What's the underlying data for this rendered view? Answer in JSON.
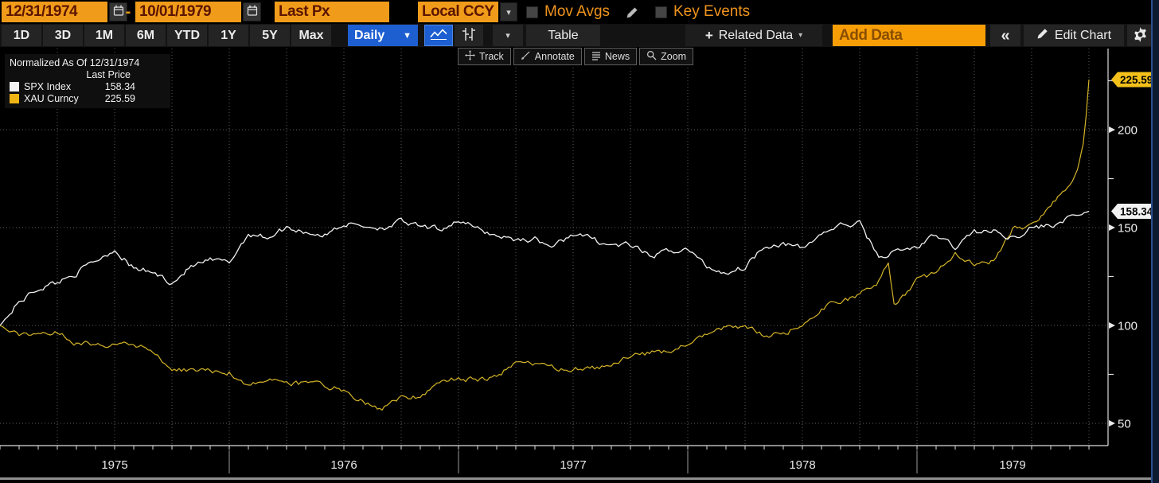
{
  "topbar": {
    "date_start": "12/31/1974",
    "date_separator": "-",
    "date_end": "10/01/1979",
    "last_px": "Last Px",
    "local_ccy": "Local CCY",
    "ccy_caret": "▾",
    "mov_avgs": "Mov Avgs",
    "key_events": "Key Events"
  },
  "nav": {
    "tabs": [
      "1D",
      "3D",
      "1M",
      "6M",
      "YTD",
      "1Y",
      "5Y",
      "Max"
    ],
    "period": "Daily",
    "period_caret": "▼",
    "chart_type_caret": "▾",
    "table": "Table",
    "related_plus": "+",
    "related_data": "Related Data",
    "related_caret": "▾",
    "add_data": "Add Data",
    "collapse": "«",
    "edit_chart": "Edit Chart"
  },
  "chart_toolbar": {
    "buttons": [
      {
        "icon": "track-icon",
        "label": "Track"
      },
      {
        "icon": "annotate-icon",
        "label": "Annotate"
      },
      {
        "icon": "news-icon",
        "label": "News"
      },
      {
        "icon": "zoom-icon",
        "label": "Zoom"
      }
    ]
  },
  "legend": {
    "title": "Normalized As Of 12/31/1974",
    "header": "Last Price",
    "series": [
      {
        "name": "SPX Index",
        "value": "158.34",
        "swatch": "#f2f2f2"
      },
      {
        "name": "XAU Curncy",
        "value": "225.59",
        "swatch": "#f0b514"
      }
    ]
  },
  "y_axis": {
    "major_ticks": [
      50,
      100,
      150,
      200
    ],
    "minor_ticks": [
      75,
      125,
      175,
      225
    ],
    "price_flags": [
      {
        "value": 225.59,
        "label": "225.59",
        "bg": "#f3c11a",
        "text": "#000000"
      },
      {
        "value": 158.34,
        "label": "158.34",
        "bg": "#f2f2f2",
        "text": "#000000"
      }
    ]
  },
  "x_axis": {
    "years": [
      "1975",
      "1976",
      "1977",
      "1978",
      "1979"
    ]
  },
  "chart_data": {
    "type": "line",
    "title": "Normalized As Of 12/31/1974, Last Price",
    "x_unit": "months since 1974-12-31",
    "x_range_dates": [
      "12/31/1974",
      "10/01/1979"
    ],
    "ylim": [
      38,
      242
    ],
    "grid": "dotted, quarterly vertical + 50-step horizontal",
    "legend_position": "top-left",
    "year_boundary_months": [
      12,
      24,
      36,
      48
    ],
    "quarter_grid_step_months": 3,
    "series": [
      {
        "name": "SPX Index",
        "color": "#f2f2f2",
        "last": 158.34,
        "x": [
          0,
          1,
          2,
          3,
          4,
          5,
          6,
          7,
          8,
          9,
          10,
          11,
          12,
          13,
          14,
          15,
          16,
          17,
          18,
          19,
          20,
          21,
          22,
          23,
          24,
          25,
          26,
          27,
          28,
          29,
          30,
          31,
          32,
          33,
          34,
          35,
          36,
          37,
          38,
          39,
          40,
          41,
          42,
          43,
          44,
          45,
          46,
          47,
          48,
          49,
          50,
          51,
          52,
          53,
          54,
          55,
          56,
          57
        ],
        "y": [
          100,
          112,
          119,
          122,
          127,
          133,
          139,
          129,
          127,
          122,
          130,
          133,
          132,
          147,
          145,
          150,
          148,
          146,
          152,
          151,
          150,
          153,
          150,
          149,
          154,
          149,
          146,
          144,
          144,
          140,
          147,
          144,
          141,
          141,
          135,
          138,
          139,
          130,
          127,
          130,
          141,
          142,
          139,
          147,
          151,
          152,
          135,
          138,
          140,
          146,
          140,
          148,
          148,
          145,
          150,
          151,
          155,
          158.34
        ]
      },
      {
        "name": "XAU Curncy",
        "color": "#d4b428",
        "last": 225.59,
        "x": [
          0,
          1,
          2,
          3,
          4,
          5,
          6,
          7,
          8,
          9,
          10,
          11,
          12,
          13,
          14,
          15,
          16,
          17,
          18,
          19,
          20,
          21,
          22,
          23,
          24,
          25,
          26,
          27,
          28,
          29,
          30,
          31,
          32,
          33,
          34,
          35,
          36,
          37,
          38,
          39,
          40,
          41,
          42,
          43,
          44,
          45,
          46,
          46.5,
          46.8,
          47,
          48,
          49,
          50,
          51,
          52,
          53,
          54,
          55,
          56,
          56.4,
          56.7,
          56.85,
          57
        ],
        "y": [
          100,
          95,
          97,
          96,
          91,
          91,
          90,
          90,
          87,
          77,
          77,
          77,
          76,
          70,
          72,
          71,
          70,
          69,
          67,
          61,
          57,
          63,
          64,
          71,
          73,
          72,
          74,
          81,
          80,
          78,
          78,
          78,
          79,
          84,
          86,
          87,
          90,
          95,
          99,
          100,
          95,
          96,
          100,
          109,
          112,
          115,
          123,
          132,
          110,
          112,
          123,
          127,
          137,
          131,
          133,
          149,
          151,
          161,
          171,
          180,
          193,
          207,
          225.59
        ]
      }
    ]
  },
  "colors": {
    "accent_orange": "#f09c1a",
    "orange_text_dark": "#5c1500",
    "accent_blue": "#1d5fd1",
    "spx_line": "#f2f2f2",
    "xau_line": "#d4b428",
    "grid": "#5e5e5e",
    "axis": "#dcdcdc"
  }
}
